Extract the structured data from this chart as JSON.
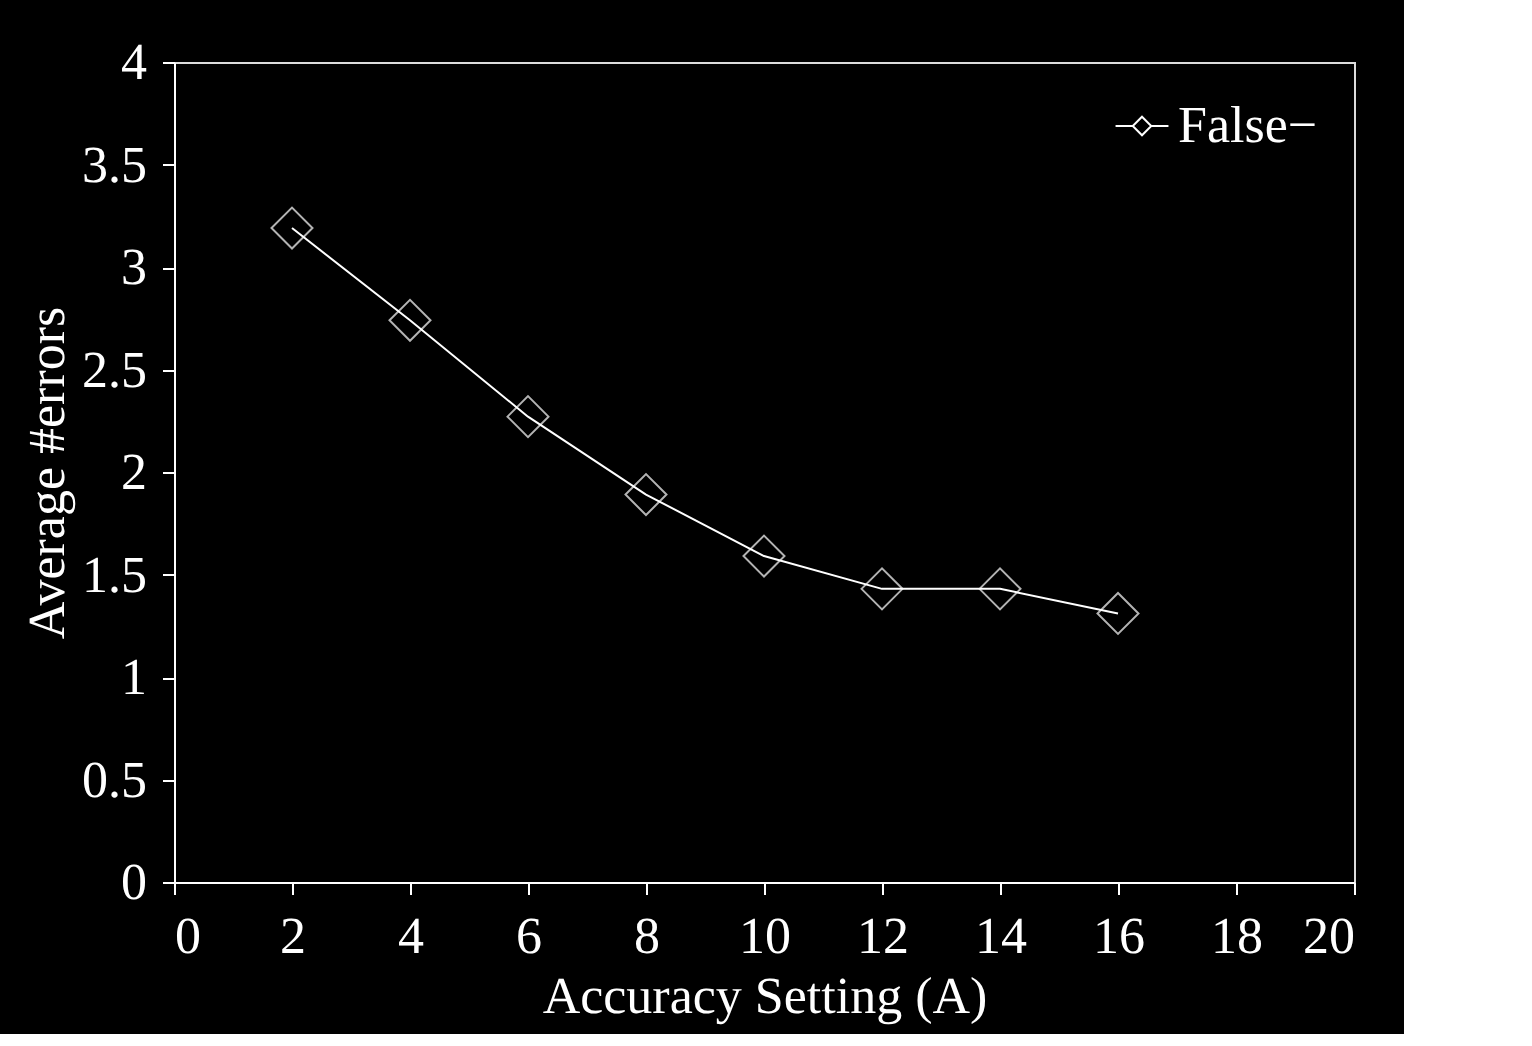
{
  "chart_data": {
    "type": "line",
    "xlabel": "Accuracy Setting (A)",
    "ylabel": "Average #errors",
    "x": [
      2,
      4,
      6,
      8,
      10,
      12,
      14,
      16
    ],
    "series": [
      {
        "name": "False−",
        "color": "#ffffff",
        "values": [
          3.19,
          2.74,
          2.27,
          1.89,
          1.59,
          1.43,
          1.43,
          1.31
        ]
      }
    ],
    "xlim": [
      0,
      20
    ],
    "xticks": [
      0,
      2,
      4,
      6,
      8,
      10,
      12,
      14,
      16,
      18,
      20
    ],
    "ylim": [
      0,
      4
    ],
    "yticks": [
      0,
      0.5,
      1,
      1.5,
      2,
      2.5,
      3,
      3.5,
      4
    ],
    "grid": false,
    "legend": "top right",
    "marker": "diamond",
    "line_style": "solid"
  }
}
